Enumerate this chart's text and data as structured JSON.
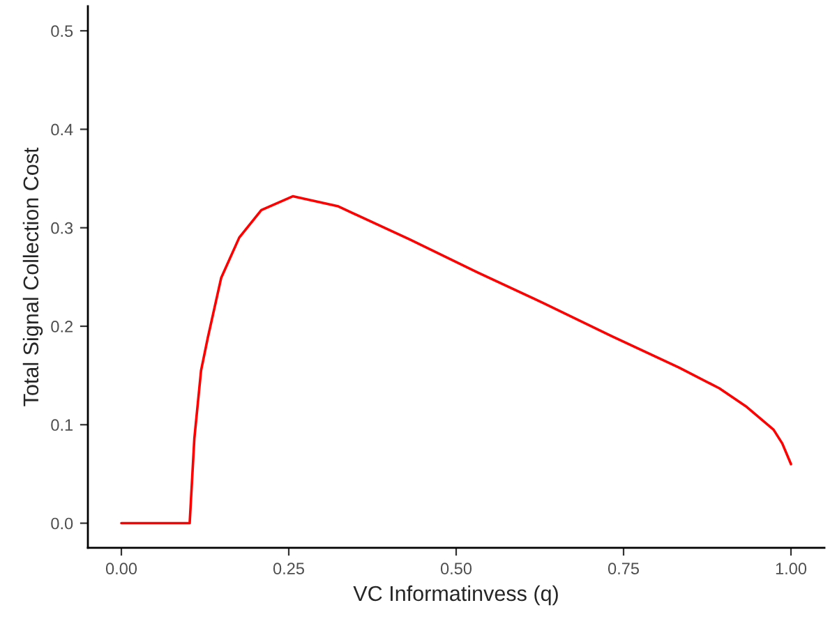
{
  "chart_data": {
    "type": "line",
    "xlabel": "VC Informatinvess (q)",
    "ylabel": "Total Signal Collection Cost",
    "series": [
      {
        "color": "#ff0000",
        "x": [
          0.0,
          0.05,
          0.102,
          0.109,
          0.119,
          0.129,
          0.149,
          0.176,
          0.209,
          0.256,
          0.323,
          0.431,
          0.531,
          0.632,
          0.732,
          0.833,
          0.893,
          0.934,
          0.974,
          0.987,
          1.0
        ],
        "values": [
          0.0,
          0.0,
          0.0,
          0.086,
          0.155,
          0.188,
          0.249,
          0.29,
          0.318,
          0.332,
          0.322,
          0.288,
          0.255,
          0.223,
          0.19,
          0.158,
          0.137,
          0.118,
          0.095,
          0.081,
          0.06
        ]
      }
    ],
    "xlim": [
      -0.05,
      1.05
    ],
    "ylim": [
      -0.025,
      0.525
    ],
    "xticks": [
      {
        "value": 0,
        "label": "0.00"
      },
      {
        "value": 0.25,
        "label": "0.25"
      },
      {
        "value": 0.5,
        "label": "0.50"
      },
      {
        "value": 0.75,
        "label": "0.75"
      },
      {
        "value": 1,
        "label": "1.00"
      }
    ],
    "yticks": [
      {
        "value": 0,
        "label": "0.0"
      },
      {
        "value": 0.1,
        "label": "0.1"
      },
      {
        "value": 0.2,
        "label": "0.2"
      },
      {
        "value": 0.3,
        "label": "0.3"
      },
      {
        "value": 0.4,
        "label": "0.4"
      },
      {
        "value": 0.5,
        "label": "0.5"
      }
    ],
    "grid": false
  }
}
